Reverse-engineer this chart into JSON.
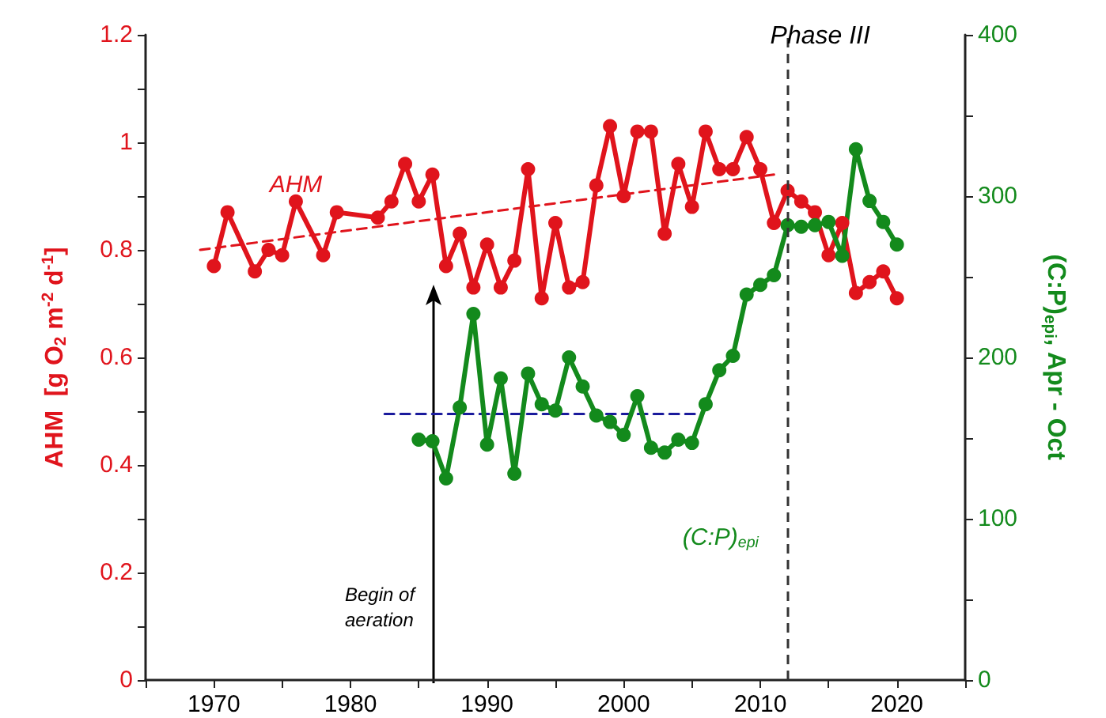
{
  "chart_data": {
    "type": "line",
    "ylabel": "AHM  [g O$_{2}$ m$^{-2}$ d$^{-1}$]",
    "y2label": "(C:P)$_{epi}$, Apr - Oct",
    "xlim": [
      1965,
      2025
    ],
    "xticks": [
      {
        "value": 1965,
        "label": null
      },
      1970,
      {
        "value": 1975,
        "label": null
      },
      1980,
      {
        "value": 1985,
        "label": null
      },
      1990,
      {
        "value": 1995,
        "label": null
      },
      2000,
      {
        "value": 2005,
        "label": null
      },
      2010,
      {
        "value": 2015,
        "label": null
      },
      2020,
      {
        "value": 2025,
        "label": null
      }
    ],
    "ylim": [
      0,
      1.2
    ],
    "yticks": [
      0,
      {
        "value": 0.1,
        "label": null
      },
      0.2,
      {
        "value": 0.3,
        "label": null
      },
      0.4,
      {
        "value": 0.5,
        "label": null
      },
      0.6,
      {
        "value": 0.7,
        "label": null
      },
      0.8,
      {
        "value": 0.9,
        "label": null
      },
      1,
      {
        "value": 1.1,
        "label": null
      },
      1.2
    ],
    "y2lim": [
      0,
      400
    ],
    "y2ticks": [
      0,
      {
        "value": 50,
        "label": null
      },
      100,
      {
        "value": 150,
        "label": null
      },
      200,
      {
        "value": 250,
        "label": null
      },
      300,
      {
        "value": 350,
        "label": null
      },
      400
    ],
    "grid": false,
    "marker": "circle",
    "line_style": "solid",
    "series": [
      {
        "name": "AHM",
        "color": "#e0141c",
        "x": [
          1970,
          1971,
          1973,
          1974,
          1975,
          1976,
          1978,
          1979,
          1982,
          1983,
          1984,
          1985,
          1986,
          1987,
          1988,
          1989,
          1990,
          1991,
          1992,
          1993,
          1994,
          1995,
          1996,
          1997,
          1998,
          1999,
          2000,
          2001,
          2002,
          2003,
          2004,
          2005,
          2006,
          2007,
          2008,
          2009,
          2010,
          2011,
          2012,
          2013,
          2014,
          2015,
          2016,
          2017,
          2018,
          2019,
          2020
        ],
        "values": [
          0.77,
          0.87,
          0.76,
          0.8,
          0.79,
          0.89,
          0.79,
          0.87,
          0.86,
          0.89,
          0.96,
          0.89,
          0.94,
          0.77,
          0.83,
          0.73,
          0.81,
          0.73,
          0.78,
          0.95,
          0.71,
          0.85,
          0.73,
          0.74,
          0.92,
          1.03,
          0.9,
          1.02,
          1.02,
          0.83,
          0.96,
          0.88,
          1.02,
          0.95,
          0.95,
          1.01,
          0.95,
          0.85,
          0.91,
          0.89,
          0.87,
          0.79,
          0.85,
          0.72,
          0.74,
          0.76,
          0.71
        ]
      },
      {
        "name": "(C:P)$_{epi}$",
        "color": "#138a1c",
        "axis": "y2",
        "x": [
          1985,
          1986,
          1987,
          1988,
          1989,
          1990,
          1991,
          1992,
          1993,
          1994,
          1995,
          1996,
          1997,
          1998,
          1999,
          2000,
          2001,
          2002,
          2003,
          2004,
          2005,
          2006,
          2007,
          2008,
          2009,
          2010,
          2011,
          2012,
          2013,
          2014,
          2015,
          2016,
          2017,
          2018,
          2019,
          2020
        ],
        "values": [
          149,
          148,
          125,
          169,
          227,
          146,
          187,
          128,
          190,
          171,
          167,
          200,
          182,
          164,
          160,
          152,
          176,
          144,
          141,
          149,
          147,
          171,
          192,
          201,
          239,
          245,
          251,
          282,
          281,
          282,
          284,
          263,
          329,
          297,
          284,
          270
        ]
      },
      {
        "type": "line",
        "color": "#e0141c",
        "line_style": "dashed",
        "marker": "none",
        "x": [
          1969,
          2011
        ],
        "values": [
          0.8,
          0.94
        ]
      },
      {
        "type": "line",
        "color": "#1a1a9c",
        "line_style": "dashed",
        "marker": "none",
        "axis": "y2",
        "x": [
          1982.5,
          2005.5
        ],
        "values": [
          165,
          165
        ]
      }
    ],
    "ref_lines": [
      {
        "axis": "x",
        "value": 2012,
        "label": "Phase III",
        "color": "#333333",
        "line_style": "dashed"
      }
    ],
    "annotations": [
      "Begin of aeration"
    ]
  }
}
